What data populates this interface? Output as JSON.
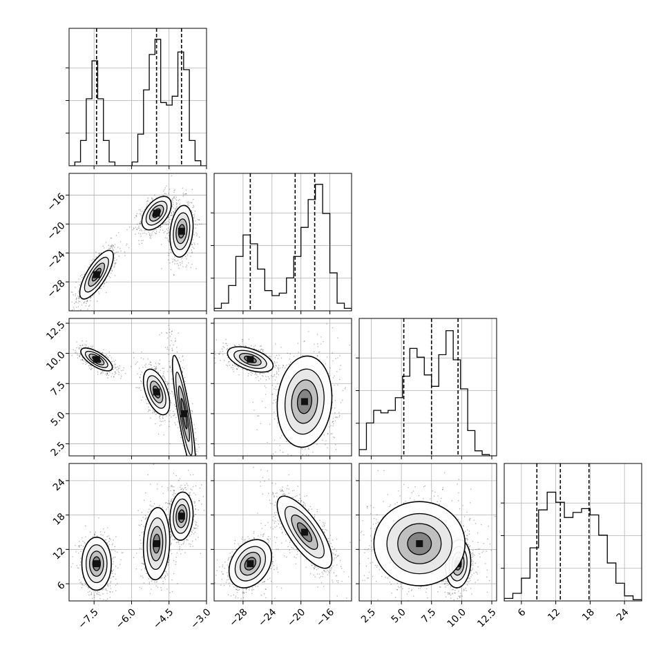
{
  "chart_data": {
    "type": "corner",
    "grid": true,
    "parameters": [
      {
        "range": [
          -8.5,
          -3.0
        ],
        "ticks": [
          "-7.5",
          "-6.0",
          "-4.5",
          "-3.0"
        ],
        "tick_values": [
          -7.5,
          -6.0,
          -4.5,
          -3.0
        ],
        "quantiles": [
          -7.4,
          -5.0,
          -4.0
        ],
        "histogram": [
          0,
          0.03,
          0.2,
          0.53,
          0.83,
          0.53,
          0.2,
          0.03,
          0,
          0,
          0,
          0.03,
          0.25,
          0.6,
          0.88,
          1.0,
          0.5,
          0.48,
          0.55,
          0.9,
          0.76,
          0.2,
          0.04,
          0
        ]
      },
      {
        "range": [
          -32,
          -13
        ],
        "ticks": [
          "-28",
          "-24",
          "-20",
          "-16"
        ],
        "tick_values": [
          -28,
          -24,
          -20,
          -16
        ],
        "quantiles": [
          -27.0,
          -20.8,
          -18.1
        ],
        "histogram": [
          0.02,
          0.06,
          0.2,
          0.43,
          0.6,
          0.53,
          0.33,
          0.16,
          0.12,
          0.14,
          0.26,
          0.43,
          0.66,
          0.88,
          1.0,
          0.77,
          0.3,
          0.06,
          0.02
        ]
      },
      {
        "range": [
          1.5,
          12.9
        ],
        "ticks": [
          "2.5",
          "5.0",
          "7.5",
          "10.0",
          "12.5"
        ],
        "tick_values": [
          2.5,
          5.0,
          7.5,
          10.0,
          12.5
        ],
        "quantiles": [
          5.2,
          7.5,
          9.7
        ],
        "histogram": [
          0.05,
          0.26,
          0.36,
          0.34,
          0.36,
          0.46,
          0.63,
          0.85,
          0.78,
          0.64,
          0.55,
          0.8,
          0.99,
          0.76,
          0.53,
          0.2,
          0.04,
          0.01,
          0
        ]
      },
      {
        "range": [
          3,
          27
        ],
        "ticks": [
          "6",
          "12",
          "18",
          "24"
        ],
        "tick_values": [
          6,
          12,
          18,
          24
        ],
        "quantiles": [
          8.7,
          12.8,
          17.8
        ],
        "histogram": [
          0.02,
          0.06,
          0.18,
          0.42,
          0.72,
          0.86,
          0.78,
          0.66,
          0.7,
          0.73,
          0.68,
          0.52,
          0.3,
          0.14,
          0.04,
          0.01
        ]
      }
    ],
    "pairs": [
      {
        "row": 1,
        "col": 0,
        "clusters": [
          {
            "mx": -7.4,
            "my": -27.0,
            "sx": 0.32,
            "sy": 1.6,
            "rho": 0.75,
            "w": 1.0
          },
          {
            "mx": -5.0,
            "my": -18.5,
            "sx": 0.28,
            "sy": 1.1,
            "rho": 0.5,
            "w": 1.05
          },
          {
            "mx": -4.0,
            "my": -21.0,
            "sx": 0.22,
            "sy": 1.7,
            "rho": 0.2,
            "w": 0.9
          }
        ]
      },
      {
        "row": 2,
        "col": 0,
        "clusters": [
          {
            "mx": -7.4,
            "my": 9.5,
            "sx": 0.3,
            "sy": 0.45,
            "rho": -0.7,
            "w": 1.0
          },
          {
            "mx": -5.0,
            "my": 6.8,
            "sx": 0.25,
            "sy": 0.9,
            "rho": -0.5,
            "w": 0.9
          },
          {
            "mx": -3.9,
            "my": 5.0,
            "sx": 0.22,
            "sy": 2.3,
            "rho": -0.85,
            "w": 0.9
          }
        ]
      },
      {
        "row": 2,
        "col": 1,
        "clusters": [
          {
            "mx": -27.0,
            "my": 9.5,
            "sx": 1.5,
            "sy": 0.5,
            "rho": -0.5,
            "w": 1.0
          },
          {
            "mx": -19.5,
            "my": 6.0,
            "sx": 1.8,
            "sy": 1.8,
            "rho": 0.1,
            "w": 1.2
          }
        ]
      },
      {
        "row": 3,
        "col": 0,
        "clusters": [
          {
            "mx": -7.4,
            "my": 9.5,
            "sx": 0.28,
            "sy": 2.2,
            "rho": 0.0,
            "w": 1.0
          },
          {
            "mx": -5.0,
            "my": 13.0,
            "sx": 0.25,
            "sy": 3.0,
            "rho": 0.1,
            "w": 1.0
          },
          {
            "mx": -4.0,
            "my": 17.8,
            "sx": 0.22,
            "sy": 2.0,
            "rho": 0.1,
            "w": 1.0
          }
        ]
      },
      {
        "row": 3,
        "col": 1,
        "clusters": [
          {
            "mx": -27.0,
            "my": 9.5,
            "sx": 1.4,
            "sy": 2.0,
            "rho": 0.3,
            "w": 1.0
          },
          {
            "mx": -19.5,
            "my": 15.0,
            "sx": 1.8,
            "sy": 3.0,
            "rho": -0.75,
            "w": 1.3
          }
        ]
      },
      {
        "row": 3,
        "col": 2,
        "clusters": [
          {
            "mx": 9.7,
            "my": 9.5,
            "sx": 0.5,
            "sy": 2.0,
            "rho": 0.1,
            "w": 1.0
          },
          {
            "mx": 6.5,
            "my": 13.0,
            "sx": 1.8,
            "sy": 3.5,
            "rho": 0.0,
            "w": 1.3
          }
        ]
      }
    ]
  }
}
